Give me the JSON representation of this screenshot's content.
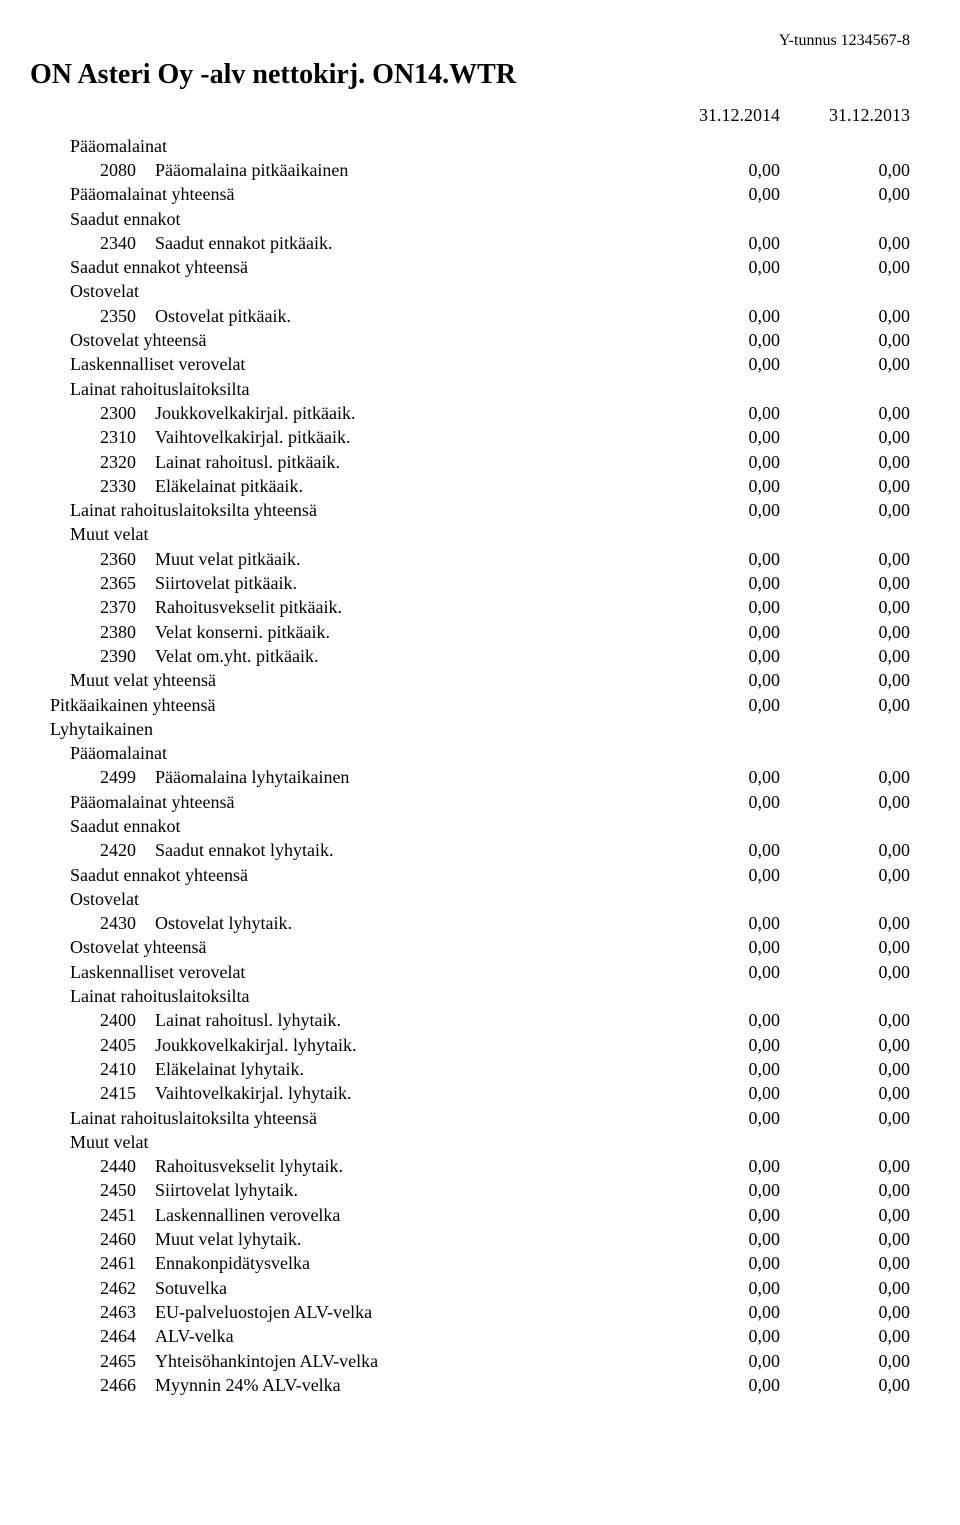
{
  "header": {
    "y_tunnus": "Y-tunnus 1234567-8",
    "title": "ON Asteri Oy -alv nettokirj. ON14.WTR",
    "date1": "31.12.2014",
    "date2": "31.12.2013"
  },
  "rows": [
    {
      "indent": 2,
      "code": "",
      "label": "Pääomalainat",
      "v1": "",
      "v2": ""
    },
    {
      "indent": 3,
      "code": "2080",
      "label": "Pääomalaina pitkäaikainen",
      "v1": "0,00",
      "v2": "0,00"
    },
    {
      "indent": 2,
      "code": "",
      "label": "Pääomalainat yhteensä",
      "v1": "0,00",
      "v2": "0,00"
    },
    {
      "indent": 2,
      "code": "",
      "label": "Saadut ennakot",
      "v1": "",
      "v2": ""
    },
    {
      "indent": 3,
      "code": "2340",
      "label": "Saadut ennakot pitkäaik.",
      "v1": "0,00",
      "v2": "0,00"
    },
    {
      "indent": 2,
      "code": "",
      "label": "Saadut ennakot yhteensä",
      "v1": "0,00",
      "v2": "0,00"
    },
    {
      "indent": 2,
      "code": "",
      "label": "Ostovelat",
      "v1": "",
      "v2": ""
    },
    {
      "indent": 3,
      "code": "2350",
      "label": "Ostovelat pitkäaik.",
      "v1": "0,00",
      "v2": "0,00"
    },
    {
      "indent": 2,
      "code": "",
      "label": "Ostovelat yhteensä",
      "v1": "0,00",
      "v2": "0,00"
    },
    {
      "indent": 2,
      "code": "",
      "label": "Laskennalliset verovelat",
      "v1": "0,00",
      "v2": "0,00"
    },
    {
      "indent": 2,
      "code": "",
      "label": "Lainat rahoituslaitoksilta",
      "v1": "",
      "v2": ""
    },
    {
      "indent": 3,
      "code": "2300",
      "label": "Joukkovelkakirjal. pitkäaik.",
      "v1": "0,00",
      "v2": "0,00"
    },
    {
      "indent": 3,
      "code": "2310",
      "label": "Vaihtovelkakirjal. pitkäaik.",
      "v1": "0,00",
      "v2": "0,00"
    },
    {
      "indent": 3,
      "code": "2320",
      "label": "Lainat rahoitusl. pitkäaik.",
      "v1": "0,00",
      "v2": "0,00"
    },
    {
      "indent": 3,
      "code": "2330",
      "label": "Eläkelainat pitkäaik.",
      "v1": "0,00",
      "v2": "0,00"
    },
    {
      "indent": 2,
      "code": "",
      "label": "Lainat rahoituslaitoksilta yhteensä",
      "v1": "0,00",
      "v2": "0,00"
    },
    {
      "indent": 2,
      "code": "",
      "label": "Muut velat",
      "v1": "",
      "v2": ""
    },
    {
      "indent": 3,
      "code": "2360",
      "label": "Muut velat pitkäaik.",
      "v1": "0,00",
      "v2": "0,00"
    },
    {
      "indent": 3,
      "code": "2365",
      "label": "Siirtovelat pitkäaik.",
      "v1": "0,00",
      "v2": "0,00"
    },
    {
      "indent": 3,
      "code": "2370",
      "label": "Rahoitusvekselit pitkäaik.",
      "v1": "0,00",
      "v2": "0,00"
    },
    {
      "indent": 3,
      "code": "2380",
      "label": "Velat konserni. pitkäaik.",
      "v1": "0,00",
      "v2": "0,00"
    },
    {
      "indent": 3,
      "code": "2390",
      "label": "Velat om.yht. pitkäaik.",
      "v1": "0,00",
      "v2": "0,00"
    },
    {
      "indent": 2,
      "code": "",
      "label": "Muut velat yhteensä",
      "v1": "0,00",
      "v2": "0,00"
    },
    {
      "indent": 1,
      "code": "",
      "label": "Pitkäaikainen yhteensä",
      "v1": "0,00",
      "v2": "0,00"
    },
    {
      "indent": 1,
      "code": "",
      "label": "Lyhytaikainen",
      "v1": "",
      "v2": ""
    },
    {
      "indent": 2,
      "code": "",
      "label": "Pääomalainat",
      "v1": "",
      "v2": ""
    },
    {
      "indent": 3,
      "code": "2499",
      "label": "Pääomalaina lyhytaikainen",
      "v1": "0,00",
      "v2": "0,00"
    },
    {
      "indent": 2,
      "code": "",
      "label": "Pääomalainat yhteensä",
      "v1": "0,00",
      "v2": "0,00"
    },
    {
      "indent": 2,
      "code": "",
      "label": "Saadut ennakot",
      "v1": "",
      "v2": ""
    },
    {
      "indent": 3,
      "code": "2420",
      "label": "Saadut ennakot lyhytaik.",
      "v1": "0,00",
      "v2": "0,00"
    },
    {
      "indent": 2,
      "code": "",
      "label": "Saadut ennakot yhteensä",
      "v1": "0,00",
      "v2": "0,00"
    },
    {
      "indent": 2,
      "code": "",
      "label": "Ostovelat",
      "v1": "",
      "v2": ""
    },
    {
      "indent": 3,
      "code": "2430",
      "label": "Ostovelat lyhytaik.",
      "v1": "0,00",
      "v2": "0,00"
    },
    {
      "indent": 2,
      "code": "",
      "label": "Ostovelat yhteensä",
      "v1": "0,00",
      "v2": "0,00"
    },
    {
      "indent": 2,
      "code": "",
      "label": "Laskennalliset verovelat",
      "v1": "0,00",
      "v2": "0,00"
    },
    {
      "indent": 2,
      "code": "",
      "label": "Lainat rahoituslaitoksilta",
      "v1": "",
      "v2": ""
    },
    {
      "indent": 3,
      "code": "2400",
      "label": "Lainat rahoitusl. lyhytaik.",
      "v1": "0,00",
      "v2": "0,00"
    },
    {
      "indent": 3,
      "code": "2405",
      "label": "Joukkovelkakirjal. lyhytaik.",
      "v1": "0,00",
      "v2": "0,00"
    },
    {
      "indent": 3,
      "code": "2410",
      "label": "Eläkelainat lyhytaik.",
      "v1": "0,00",
      "v2": "0,00"
    },
    {
      "indent": 3,
      "code": "2415",
      "label": "Vaihtovelkakirjal. lyhytaik.",
      "v1": "0,00",
      "v2": "0,00"
    },
    {
      "indent": 2,
      "code": "",
      "label": "Lainat rahoituslaitoksilta yhteensä",
      "v1": "0,00",
      "v2": "0,00"
    },
    {
      "indent": 2,
      "code": "",
      "label": "Muut velat",
      "v1": "",
      "v2": ""
    },
    {
      "indent": 3,
      "code": "2440",
      "label": "Rahoitusvekselit lyhytaik.",
      "v1": "0,00",
      "v2": "0,00"
    },
    {
      "indent": 3,
      "code": "2450",
      "label": "Siirtovelat lyhytaik.",
      "v1": "0,00",
      "v2": "0,00"
    },
    {
      "indent": 3,
      "code": "2451",
      "label": "Laskennallinen verovelka",
      "v1": "0,00",
      "v2": "0,00"
    },
    {
      "indent": 3,
      "code": "2460",
      "label": "Muut velat lyhytaik.",
      "v1": "0,00",
      "v2": "0,00"
    },
    {
      "indent": 3,
      "code": "2461",
      "label": "Ennakonpidätysvelka",
      "v1": "0,00",
      "v2": "0,00"
    },
    {
      "indent": 3,
      "code": "2462",
      "label": "Sotuvelka",
      "v1": "0,00",
      "v2": "0,00"
    },
    {
      "indent": 3,
      "code": "2463",
      "label": "EU-palveluostojen ALV-velka",
      "v1": "0,00",
      "v2": "0,00"
    },
    {
      "indent": 3,
      "code": "2464",
      "label": "ALV-velka",
      "v1": "0,00",
      "v2": "0,00"
    },
    {
      "indent": 3,
      "code": "2465",
      "label": "Yhteisöhankintojen ALV-velka",
      "v1": "0,00",
      "v2": "0,00"
    },
    {
      "indent": 3,
      "code": "2466",
      "label": "Myynnin 24% ALV-velka",
      "v1": "0,00",
      "v2": "0,00"
    }
  ]
}
